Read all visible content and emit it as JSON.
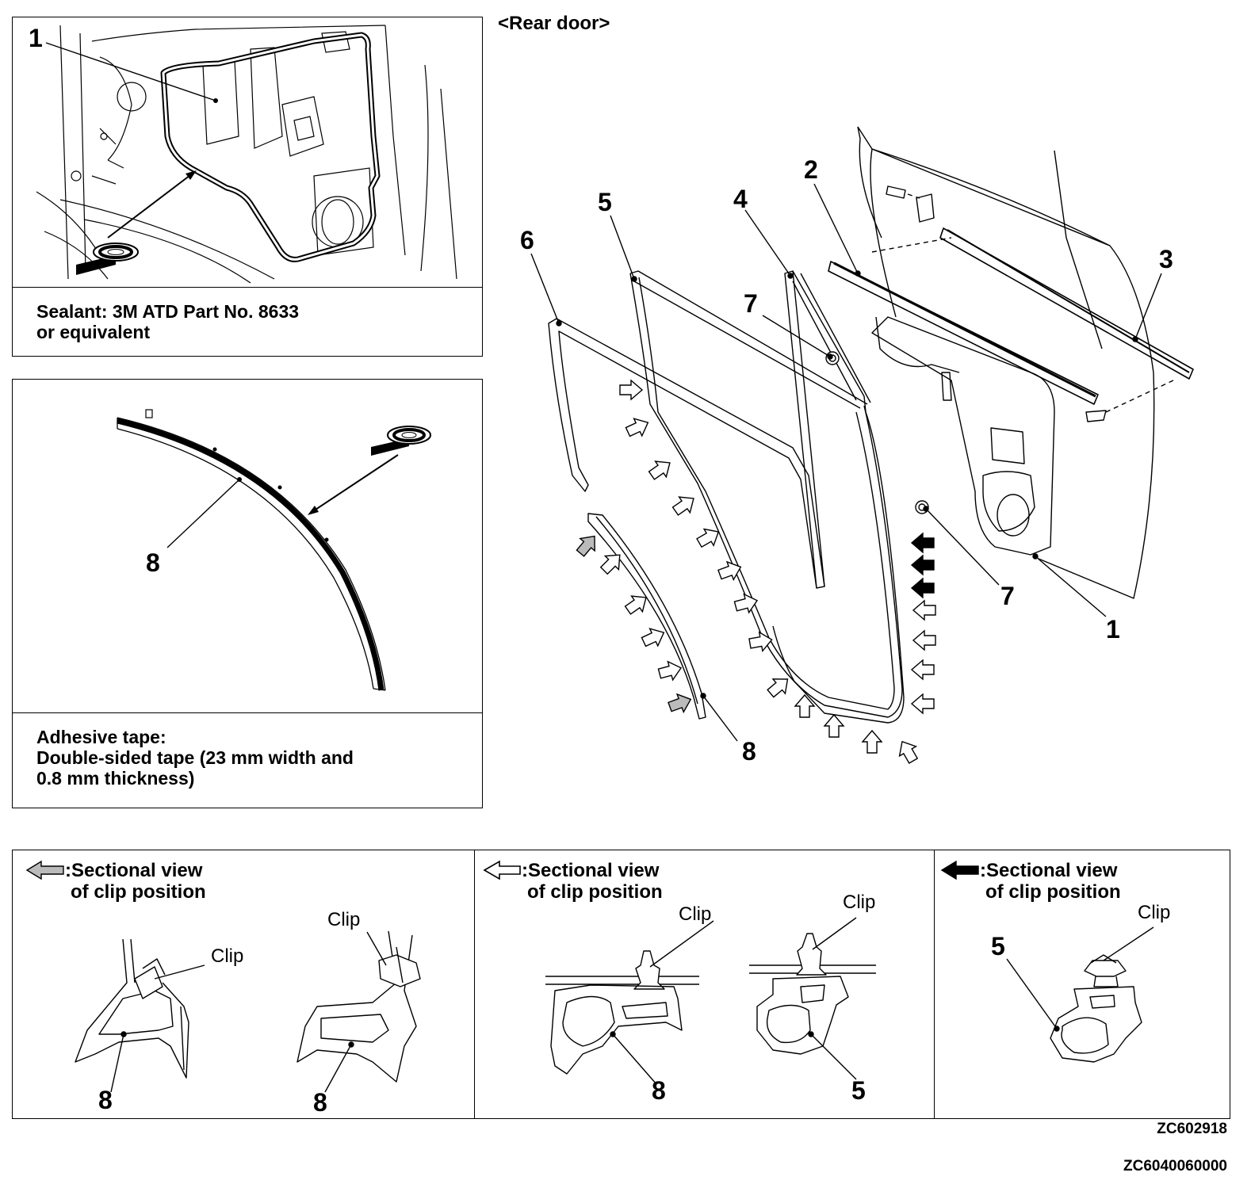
{
  "view_title": "<Rear door>",
  "sealant_panel": {
    "line1": "Sealant: 3M ATD Part No. 8633",
    "line2": "or equivalent",
    "callout": "1"
  },
  "tape_panel": {
    "line1": "Adhesive tape:",
    "line2": "Double-sided tape (23 mm width and",
    "line3": "0.8 mm thickness)",
    "callout": "8"
  },
  "main_callouts": {
    "c1": "1",
    "c2": "2",
    "c3": "3",
    "c4": "4",
    "c5": "5",
    "c6": "6",
    "c7a": "7",
    "c7b": "7",
    "c8": "8"
  },
  "sections": [
    {
      "title1": ":Sectional view",
      "title2": "of clip position",
      "clip": "Clip",
      "part_a": "8",
      "part_b": "8"
    },
    {
      "title1": ":Sectional view",
      "title2": "of clip position",
      "clip_a": "Clip",
      "clip_b": "Clip",
      "part_a": "8",
      "part_b": "5"
    },
    {
      "title1": ":Sectional view",
      "title2": "of clip position",
      "clip": "Clip",
      "part": "5"
    }
  ],
  "codes": {
    "code1": "ZC602918",
    "code2": "ZC6040060000"
  }
}
